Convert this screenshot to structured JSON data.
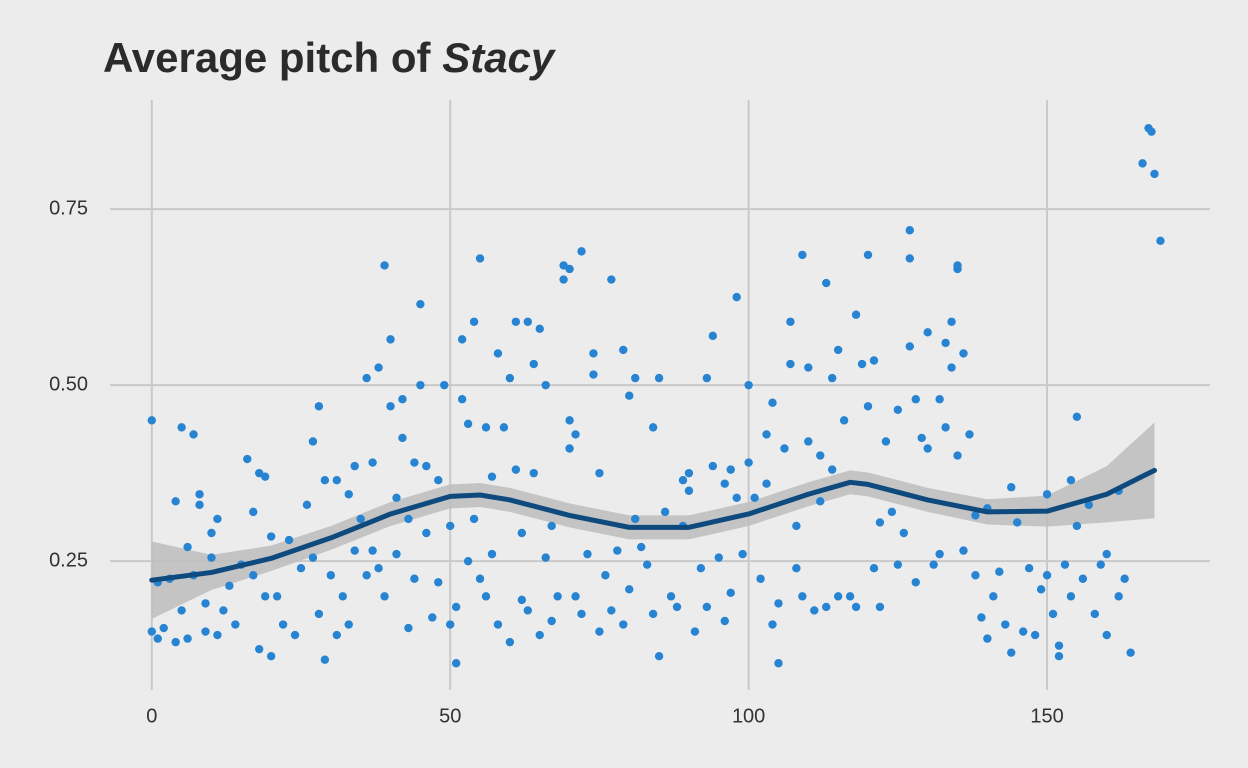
{
  "chart_data": {
    "type": "scatter",
    "title": "Average pitch of",
    "title_emphasis": "Stacy",
    "x": [
      0,
      0,
      1,
      1,
      2,
      3,
      4,
      4,
      5,
      5,
      6,
      6,
      7,
      7,
      8,
      8,
      9,
      9,
      10,
      10,
      11,
      11,
      12,
      13,
      14,
      15,
      16,
      17,
      17,
      18,
      18,
      19,
      19,
      20,
      20,
      21,
      22,
      23,
      24,
      25,
      26,
      27,
      27,
      28,
      28,
      29,
      29,
      30,
      31,
      31,
      32,
      33,
      33,
      34,
      34,
      35,
      36,
      36,
      37,
      37,
      38,
      38,
      39,
      39,
      40,
      40,
      41,
      41,
      42,
      42,
      43,
      43,
      44,
      44,
      45,
      45,
      46,
      46,
      47,
      48,
      48,
      49,
      50,
      50,
      51,
      51,
      52,
      52,
      53,
      53,
      54,
      54,
      55,
      55,
      56,
      56,
      57,
      57,
      58,
      58,
      59,
      60,
      60,
      61,
      61,
      62,
      62,
      63,
      63,
      64,
      64,
      65,
      65,
      66,
      66,
      67,
      67,
      68,
      69,
      69,
      70,
      70,
      70,
      71,
      71,
      72,
      72,
      73,
      74,
      74,
      75,
      75,
      76,
      77,
      77,
      78,
      79,
      79,
      80,
      80,
      81,
      81,
      82,
      83,
      84,
      84,
      85,
      85,
      86,
      87,
      88,
      89,
      89,
      90,
      90,
      91,
      92,
      93,
      93,
      94,
      94,
      95,
      96,
      96,
      97,
      97,
      98,
      98,
      99,
      100,
      100,
      101,
      102,
      103,
      103,
      104,
      104,
      105,
      105,
      106,
      107,
      107,
      108,
      108,
      109,
      109,
      110,
      110,
      111,
      112,
      112,
      113,
      113,
      114,
      114,
      115,
      115,
      116,
      117,
      118,
      118,
      119,
      120,
      120,
      121,
      121,
      122,
      122,
      123,
      124,
      125,
      125,
      126,
      127,
      127,
      127,
      128,
      128,
      129,
      130,
      130,
      131,
      132,
      132,
      133,
      133,
      134,
      134,
      135,
      135,
      135,
      136,
      136,
      137,
      138,
      138,
      139,
      140,
      140,
      141,
      142,
      143,
      144,
      144,
      145,
      146,
      147,
      148,
      149,
      150,
      150,
      151,
      152,
      152,
      153,
      154,
      154,
      155,
      155,
      156,
      157,
      158,
      159,
      160,
      160,
      162,
      162,
      163,
      164,
      166,
      167,
      167.5,
      168,
      169
    ],
    "values": [
      0.45,
      0.15,
      0.22,
      0.14,
      0.155,
      0.225,
      0.135,
      0.335,
      0.44,
      0.18,
      0.27,
      0.14,
      0.43,
      0.23,
      0.33,
      0.345,
      0.19,
      0.15,
      0.29,
      0.255,
      0.145,
      0.31,
      0.18,
      0.215,
      0.16,
      0.245,
      0.395,
      0.23,
      0.32,
      0.375,
      0.125,
      0.2,
      0.37,
      0.115,
      0.285,
      0.2,
      0.16,
      0.28,
      0.145,
      0.24,
      0.33,
      0.42,
      0.255,
      0.47,
      0.175,
      0.11,
      0.365,
      0.23,
      0.145,
      0.365,
      0.2,
      0.345,
      0.16,
      0.265,
      0.385,
      0.31,
      0.23,
      0.51,
      0.39,
      0.265,
      0.525,
      0.24,
      0.67,
      0.2,
      0.47,
      0.565,
      0.26,
      0.34,
      0.48,
      0.425,
      0.31,
      0.155,
      0.39,
      0.225,
      0.615,
      0.5,
      0.29,
      0.385,
      0.17,
      0.365,
      0.22,
      0.5,
      0.16,
      0.3,
      0.105,
      0.185,
      0.565,
      0.48,
      0.445,
      0.25,
      0.59,
      0.31,
      0.68,
      0.225,
      0.44,
      0.2,
      0.37,
      0.26,
      0.545,
      0.16,
      0.44,
      0.51,
      0.135,
      0.59,
      0.38,
      0.29,
      0.195,
      0.59,
      0.18,
      0.53,
      0.375,
      0.58,
      0.145,
      0.5,
      0.255,
      0.3,
      0.165,
      0.2,
      0.67,
      0.65,
      0.665,
      0.45,
      0.41,
      0.43,
      0.2,
      0.69,
      0.175,
      0.26,
      0.545,
      0.515,
      0.15,
      0.375,
      0.23,
      0.65,
      0.18,
      0.265,
      0.55,
      0.16,
      0.485,
      0.21,
      0.31,
      0.51,
      0.27,
      0.245,
      0.44,
      0.175,
      0.51,
      0.115,
      0.32,
      0.2,
      0.185,
      0.365,
      0.3,
      0.35,
      0.375,
      0.15,
      0.24,
      0.51,
      0.185,
      0.385,
      0.57,
      0.255,
      0.36,
      0.165,
      0.205,
      0.38,
      0.625,
      0.34,
      0.26,
      0.5,
      0.39,
      0.34,
      0.225,
      0.43,
      0.36,
      0.475,
      0.16,
      0.105,
      0.19,
      0.41,
      0.59,
      0.53,
      0.3,
      0.24,
      0.685,
      0.2,
      0.525,
      0.42,
      0.18,
      0.335,
      0.4,
      0.645,
      0.185,
      0.51,
      0.38,
      0.55,
      0.2,
      0.45,
      0.2,
      0.6,
      0.185,
      0.53,
      0.685,
      0.47,
      0.535,
      0.24,
      0.185,
      0.305,
      0.42,
      0.32,
      0.465,
      0.245,
      0.29,
      0.72,
      0.68,
      0.555,
      0.48,
      0.22,
      0.425,
      0.575,
      0.41,
      0.245,
      0.48,
      0.26,
      0.56,
      0.44,
      0.59,
      0.525,
      0.67,
      0.665,
      0.4,
      0.545,
      0.265,
      0.43,
      0.23,
      0.315,
      0.17,
      0.325,
      0.14,
      0.2,
      0.235,
      0.16,
      0.355,
      0.12,
      0.305,
      0.15,
      0.24,
      0.145,
      0.21,
      0.345,
      0.23,
      0.175,
      0.115,
      0.13,
      0.245,
      0.365,
      0.2,
      0.455,
      0.3,
      0.225,
      0.33,
      0.175,
      0.245,
      0.26,
      0.145,
      0.35,
      0.2,
      0.225,
      0.12,
      0.815,
      0.865,
      0.86,
      0.8,
      0.705
    ],
    "color": "#2784d2",
    "smooth": {
      "x": [
        0,
        10,
        20,
        30,
        40,
        50,
        55,
        60,
        70,
        80,
        90,
        100,
        110,
        117,
        120,
        130,
        140,
        150,
        160,
        168
      ],
      "values": [
        0.223,
        0.234,
        0.254,
        0.283,
        0.317,
        0.342,
        0.344,
        0.337,
        0.315,
        0.298,
        0.298,
        0.317,
        0.345,
        0.362,
        0.359,
        0.337,
        0.32,
        0.321,
        0.345,
        0.379
      ],
      "lower": [
        0.168,
        0.209,
        0.236,
        0.266,
        0.3,
        0.325,
        0.327,
        0.32,
        0.298,
        0.281,
        0.281,
        0.3,
        0.328,
        0.345,
        0.342,
        0.32,
        0.302,
        0.299,
        0.305,
        0.311
      ],
      "upper": [
        0.278,
        0.259,
        0.272,
        0.3,
        0.334,
        0.359,
        0.361,
        0.354,
        0.332,
        0.315,
        0.315,
        0.334,
        0.362,
        0.379,
        0.376,
        0.354,
        0.338,
        0.343,
        0.385,
        0.447
      ],
      "color": "#0f4a7e",
      "band_color": "#bdbdbd"
    },
    "xlim": [
      -7,
      177.3
    ],
    "ylim": [
      0.067,
      0.905
    ],
    "xticks": [
      0,
      50,
      100,
      150
    ],
    "yticks": [
      {
        "value": 0.25,
        "label": "0.25"
      },
      {
        "value": 0.5,
        "label": "0.50"
      },
      {
        "value": 0.75,
        "label": "0.75"
      }
    ],
    "grid": true
  }
}
